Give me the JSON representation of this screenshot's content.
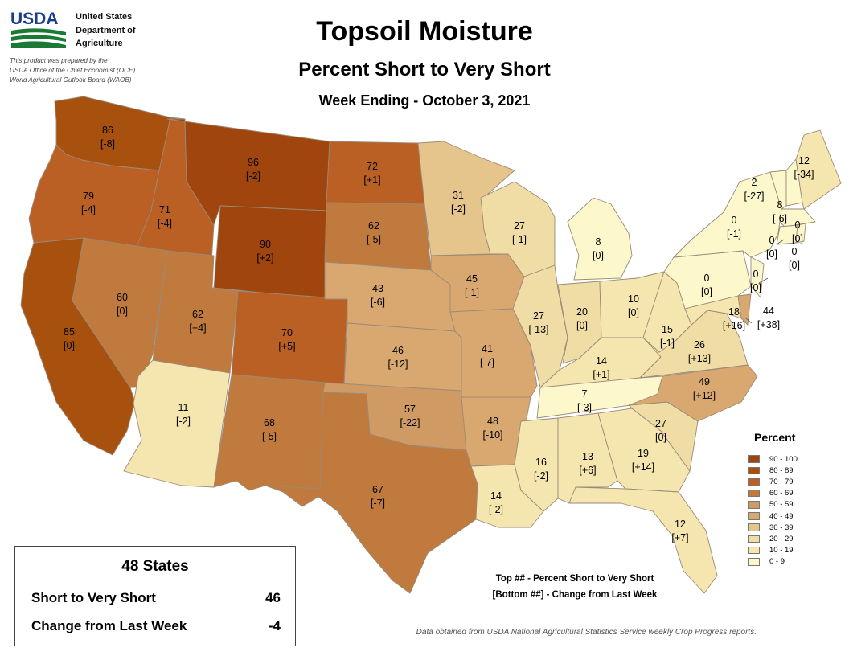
{
  "header": {
    "logo_text": "USDA",
    "org_lines": [
      "United States",
      "Department of",
      "Agriculture"
    ],
    "prepared_lines": [
      "This product was prepared by the",
      "USDA Office of the Chief Economist (OCE)",
      "World Agricultural Outlook Board (WAOB)"
    ]
  },
  "title": "Topsoil Moisture",
  "subtitle": "Percent Short to Very Short",
  "week": "Week Ending - October 3, 2021",
  "colors": {
    "c90": "#a0450e",
    "c80": "#a8510f",
    "c70": "#ba6024",
    "c60": "#c07a3e",
    "c50": "#cf9a64",
    "c40": "#d9a870",
    "c30": "#e6c58c",
    "c20": "#f0dda6",
    "c10": "#f5e6b0",
    "c0": "#fcf8cc",
    "border": "#9a8a78"
  },
  "chart_data": {
    "type": "choropleth",
    "title": "Topsoil Moisture",
    "subtitle": "Percent Short to Very Short",
    "states": [
      {
        "code": "WA",
        "value": 86,
        "change": "[-8]"
      },
      {
        "code": "OR",
        "value": 79,
        "change": "[-4]"
      },
      {
        "code": "CA",
        "value": 85,
        "change": "[0]"
      },
      {
        "code": "ID",
        "value": 71,
        "change": "[-4]"
      },
      {
        "code": "NV",
        "value": 60,
        "change": "[0]"
      },
      {
        "code": "MT",
        "value": 96,
        "change": "[-2]"
      },
      {
        "code": "WY",
        "value": 90,
        "change": "[+2]"
      },
      {
        "code": "UT",
        "value": 62,
        "change": "[+4]"
      },
      {
        "code": "AZ",
        "value": 11,
        "change": "[-2]"
      },
      {
        "code": "CO",
        "value": 70,
        "change": "[+5]"
      },
      {
        "code": "NM",
        "value": 68,
        "change": "[-5]"
      },
      {
        "code": "ND",
        "value": 72,
        "change": "[+1]"
      },
      {
        "code": "SD",
        "value": 62,
        "change": "[-5]"
      },
      {
        "code": "NE",
        "value": 43,
        "change": "[-6]"
      },
      {
        "code": "KS",
        "value": 46,
        "change": "[-12]"
      },
      {
        "code": "OK",
        "value": 57,
        "change": "[-22]"
      },
      {
        "code": "TX",
        "value": 67,
        "change": "[-7]"
      },
      {
        "code": "MN",
        "value": 31,
        "change": "[-2]"
      },
      {
        "code": "IA",
        "value": 45,
        "change": "[-1]"
      },
      {
        "code": "MO",
        "value": 41,
        "change": "[-7]"
      },
      {
        "code": "AR",
        "value": 48,
        "change": "[-10]"
      },
      {
        "code": "LA",
        "value": 14,
        "change": "[-2]"
      },
      {
        "code": "WI",
        "value": 27,
        "change": "[-1]"
      },
      {
        "code": "IL",
        "value": 27,
        "change": "[-13]"
      },
      {
        "code": "MI",
        "value": 8,
        "change": "[0]"
      },
      {
        "code": "IN",
        "value": 20,
        "change": "[0]"
      },
      {
        "code": "OH",
        "value": 10,
        "change": "[0]"
      },
      {
        "code": "KY",
        "value": 14,
        "change": "[+1]"
      },
      {
        "code": "TN",
        "value": 7,
        "change": "[-3]"
      },
      {
        "code": "MS",
        "value": 16,
        "change": "[-2]"
      },
      {
        "code": "AL",
        "value": 13,
        "change": "[+6]"
      },
      {
        "code": "GA",
        "value": 19,
        "change": "[+14]"
      },
      {
        "code": "FL",
        "value": 12,
        "change": "[+7]"
      },
      {
        "code": "SC",
        "value": 27,
        "change": "[0]"
      },
      {
        "code": "NC",
        "value": 49,
        "change": "[+12]"
      },
      {
        "code": "VA",
        "value": 26,
        "change": "[+13]"
      },
      {
        "code": "WV",
        "value": 15,
        "change": "[-1]"
      },
      {
        "code": "PA",
        "value": 0,
        "change": "[0]"
      },
      {
        "code": "NY",
        "value": 0,
        "change": "[-1]"
      },
      {
        "code": "VT",
        "value": 2,
        "change": "[-27]"
      },
      {
        "code": "NH",
        "value": 8,
        "change": "[-6]"
      },
      {
        "code": "ME",
        "value": 12,
        "change": "[-34]"
      },
      {
        "code": "MA",
        "value": 0,
        "change": "[0]"
      },
      {
        "code": "CT",
        "value": 0,
        "change": "[0]"
      },
      {
        "code": "RI",
        "value": 0,
        "change": "[0]"
      },
      {
        "code": "NJ",
        "value": 0,
        "change": "[0]"
      },
      {
        "code": "MD",
        "value": 18,
        "change": "[+16]"
      },
      {
        "code": "DE",
        "value": 44,
        "change": "[+38]"
      }
    ]
  },
  "legend": {
    "title": "Percent",
    "items": [
      {
        "label": "90 - 100",
        "color": "#a0450e"
      },
      {
        "label": "80 - 89",
        "color": "#a8510f"
      },
      {
        "label": "70 - 79",
        "color": "#ba6024"
      },
      {
        "label": "60 - 69",
        "color": "#c07a3e"
      },
      {
        "label": "50 - 59",
        "color": "#cf9a64"
      },
      {
        "label": "40 - 49",
        "color": "#d9a870"
      },
      {
        "label": "30 - 39",
        "color": "#e6c58c"
      },
      {
        "label": "20 - 29",
        "color": "#f0dda6"
      },
      {
        "label": "10 - 19",
        "color": "#f5e6b0"
      },
      {
        "label": "0 - 9",
        "color": "#fcf8cc"
      }
    ]
  },
  "summary": {
    "heading": "48 States",
    "rows": [
      {
        "label": "Short to Very Short",
        "value": "46"
      },
      {
        "label": "Change from Last Week",
        "value": "-4"
      }
    ]
  },
  "key_note": {
    "line1": "Top ## - Percent Short to Very Short",
    "line2": "[Bottom ##] - Change from Last Week"
  },
  "source": "Data obtained from USDA National Agricultural Statistics Service weekly Crop Progress reports."
}
